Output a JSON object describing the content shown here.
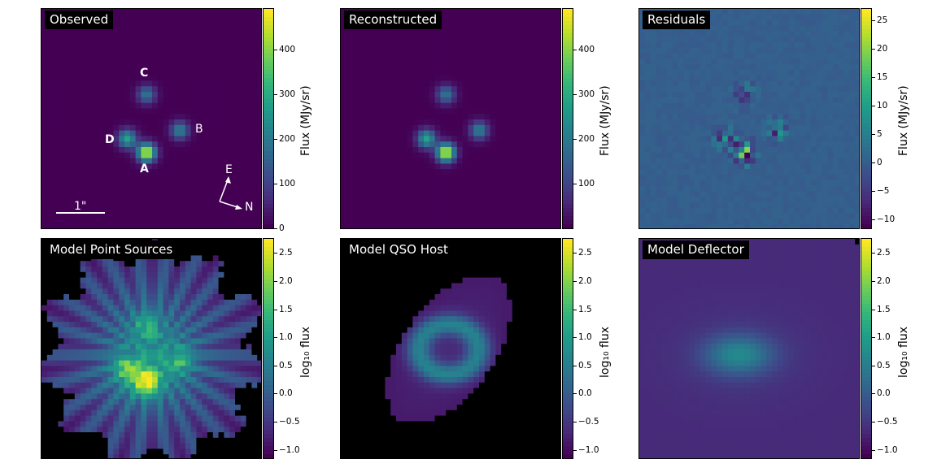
{
  "colors": {
    "background": "#440154",
    "cmap": [
      "#440154",
      "#3b528b",
      "#21918c",
      "#5ec962",
      "#fde725"
    ]
  },
  "chart_data": [
    {
      "type": "heatmap",
      "title": "Observed",
      "colorbar": {
        "label": "Flux (MJy/sr)",
        "ticks": [
          "0",
          "100",
          "200",
          "300",
          "400"
        ],
        "range": [
          0,
          490
        ]
      },
      "annotations": {
        "A": "A",
        "B": "B",
        "C": "C",
        "D": "D",
        "E": "E",
        "N": "N",
        "scale": "1\""
      }
    },
    {
      "type": "heatmap",
      "title": "Reconstructed",
      "colorbar": {
        "label": "Flux (MJy/sr)",
        "ticks": [
          "100",
          "200",
          "300",
          "400"
        ],
        "range": [
          0,
          490
        ]
      }
    },
    {
      "type": "heatmap",
      "title": "Residuals",
      "colorbar": {
        "label": "Flux (MJy/sr)",
        "ticks": [
          "−10",
          "−5",
          "0",
          "5",
          "10",
          "15",
          "20",
          "25"
        ],
        "range": [
          -11.5,
          27
        ]
      }
    },
    {
      "type": "heatmap",
      "title": "Model Point Sources",
      "colorbar": {
        "label": "log₁₀ flux",
        "ticks": [
          "−1.0",
          "−0.5",
          "0.0",
          "0.5",
          "1.0",
          "1.5",
          "2.0",
          "2.5"
        ],
        "range": [
          -1.15,
          2.75
        ]
      }
    },
    {
      "type": "heatmap",
      "title": "Model QSO Host",
      "colorbar": {
        "label": "log₁₀ flux",
        "ticks": [
          "−1.0",
          "−0.5",
          "0.0",
          "0.5",
          "1.0",
          "1.5",
          "2.0",
          "2.5"
        ],
        "range": [
          -1.15,
          2.75
        ]
      }
    },
    {
      "type": "heatmap",
      "title": "Model Deflector",
      "colorbar": {
        "label": "log₁₀ flux",
        "ticks": [
          "−1.0",
          "−0.5",
          "0.0",
          "0.5",
          "1.0",
          "1.5",
          "2.0",
          "2.5"
        ],
        "range": [
          -1.15,
          2.75
        ]
      }
    }
  ]
}
